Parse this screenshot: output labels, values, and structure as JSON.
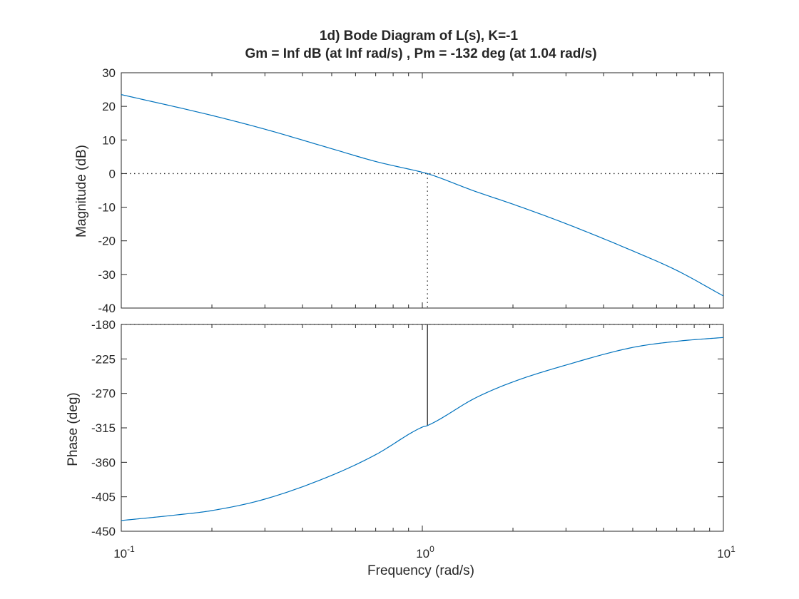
{
  "chart_data": {
    "type": "line",
    "title": "1d) Bode Diagram of L(s), K=-1",
    "subtitle": "Gm = Inf dB (at Inf rad/s) ,  Pm = -132 deg (at 1.04 rad/s)",
    "xlabel": "Frequency  (rad/s)",
    "xscale": "log",
    "xlim": [
      0.1,
      10
    ],
    "x_ticks": [
      {
        "value": 0.1,
        "base": "10",
        "exp": "-1"
      },
      {
        "value": 1,
        "base": "10",
        "exp": "0"
      },
      {
        "value": 10,
        "base": "10",
        "exp": "1"
      }
    ],
    "grid": false,
    "panels": [
      {
        "name": "magnitude",
        "ylabel": "Magnitude (dB)",
        "ylim": [
          -40,
          30
        ],
        "y_ticks": [
          30,
          20,
          10,
          0,
          -10,
          -20,
          -30,
          -40
        ],
        "series": [
          {
            "x": [
              0.1,
              0.2,
              0.3,
              0.5,
              0.7,
              1.0,
              1.04,
              1.5,
              2,
              3,
              5,
              7,
              10
            ],
            "y": [
              23.5,
              17.3,
              13.2,
              7.4,
              3.6,
              0.4,
              0,
              -5.3,
              -9.1,
              -14.9,
              -23,
              -28.8,
              -36.4
            ]
          }
        ],
        "reference_line": {
          "y": 0
        },
        "margin_marker": {
          "x": 1.04,
          "from": 0,
          "to": -40
        }
      },
      {
        "name": "phase",
        "ylabel": "Phase (deg)",
        "ylim": [
          -450,
          -180
        ],
        "y_ticks": [
          -180,
          -225,
          -270,
          -315,
          -360,
          -405,
          -450
        ],
        "series": [
          {
            "x": [
              0.1,
              0.15,
              0.2,
              0.3,
              0.5,
              0.7,
              1.0,
              1.04,
              1.5,
              2,
              3,
              5,
              7,
              10
            ],
            "y": [
              -436,
              -429,
              -423,
              -408,
              -377,
              -350,
              -314,
              -312,
              -276,
              -255,
              -233,
              -210,
              -202,
              -197
            ]
          }
        ],
        "reference_line": {
          "y": -180
        },
        "margin_marker": {
          "x": 1.04,
          "from": -180,
          "to": -312
        }
      }
    ]
  }
}
